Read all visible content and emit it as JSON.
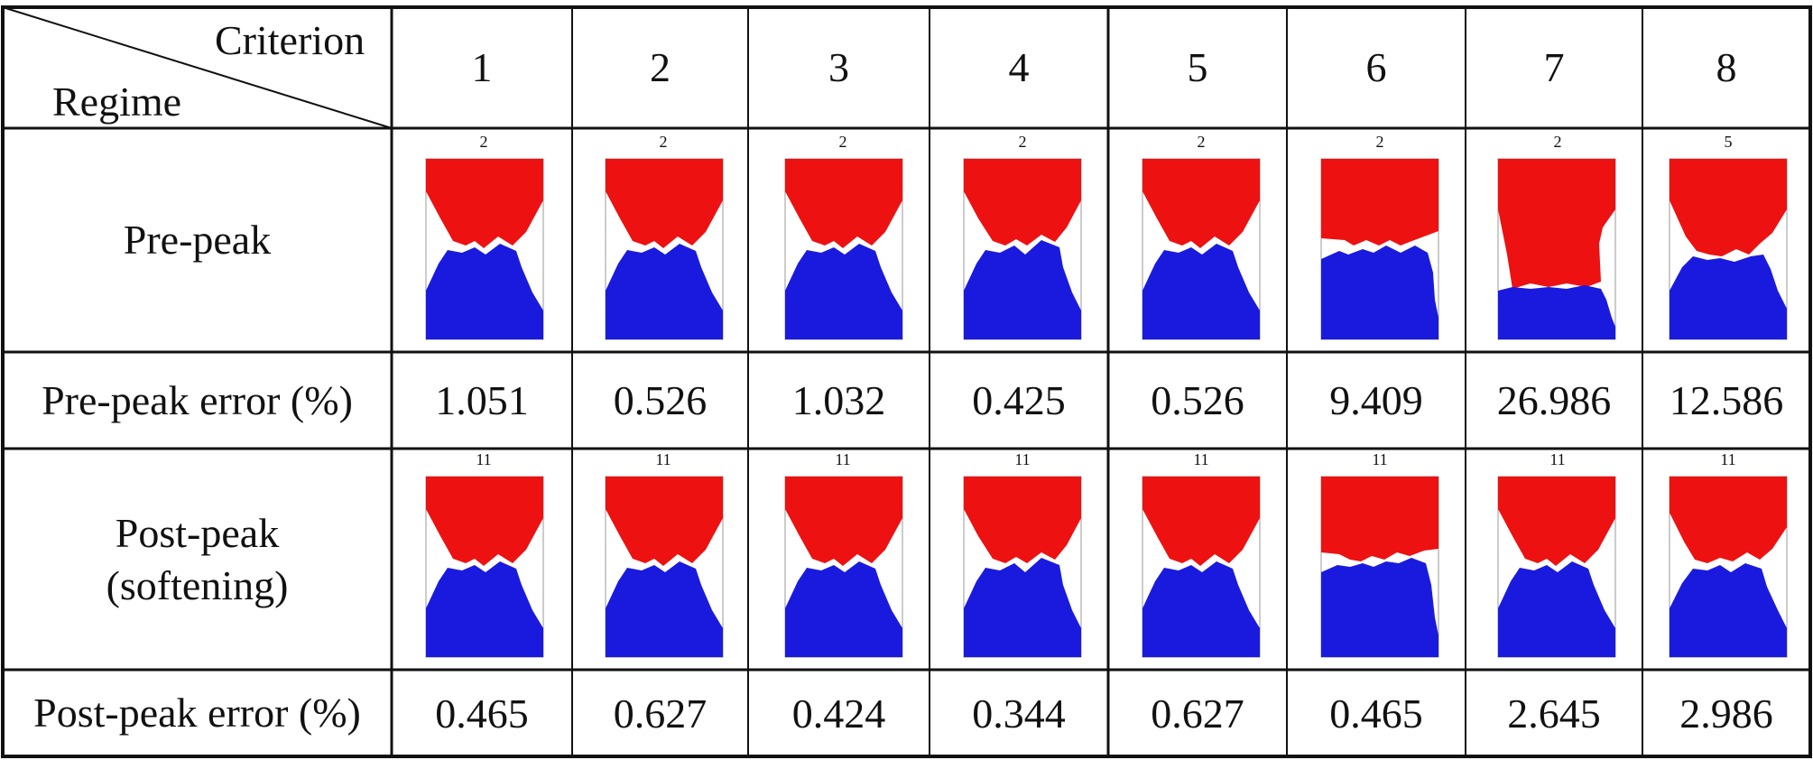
{
  "header": {
    "criterion_label": "Criterion",
    "regime_label": "Regime",
    "criteria": [
      "1",
      "2",
      "3",
      "4",
      "5",
      "6",
      "7",
      "8"
    ]
  },
  "rows": {
    "pre_peak": {
      "label": "Pre-peak",
      "figure_numbers": [
        "2",
        "2",
        "2",
        "2",
        "2",
        "2",
        "2",
        "5"
      ]
    },
    "pre_peak_error": {
      "label": "Pre-peak error (%)",
      "values": [
        "1.051",
        "0.526",
        "1.032",
        "0.425",
        "0.526",
        "9.409",
        "26.986",
        "12.586"
      ]
    },
    "post_peak": {
      "label_line1": "Post-peak",
      "label_line2": "(softening)",
      "figure_numbers": [
        "11",
        "11",
        "11",
        "11",
        "11",
        "11",
        "11",
        "11"
      ]
    },
    "post_peak_error": {
      "label": "Post-peak error (%)",
      "values": [
        "0.465",
        "0.627",
        "0.424",
        "0.344",
        "0.627",
        "0.465",
        "2.645",
        "2.986"
      ]
    }
  },
  "colors": {
    "upper_fragment": "#ee1111",
    "lower_fragment": "#1a1adf",
    "grid_line": "#111111"
  }
}
